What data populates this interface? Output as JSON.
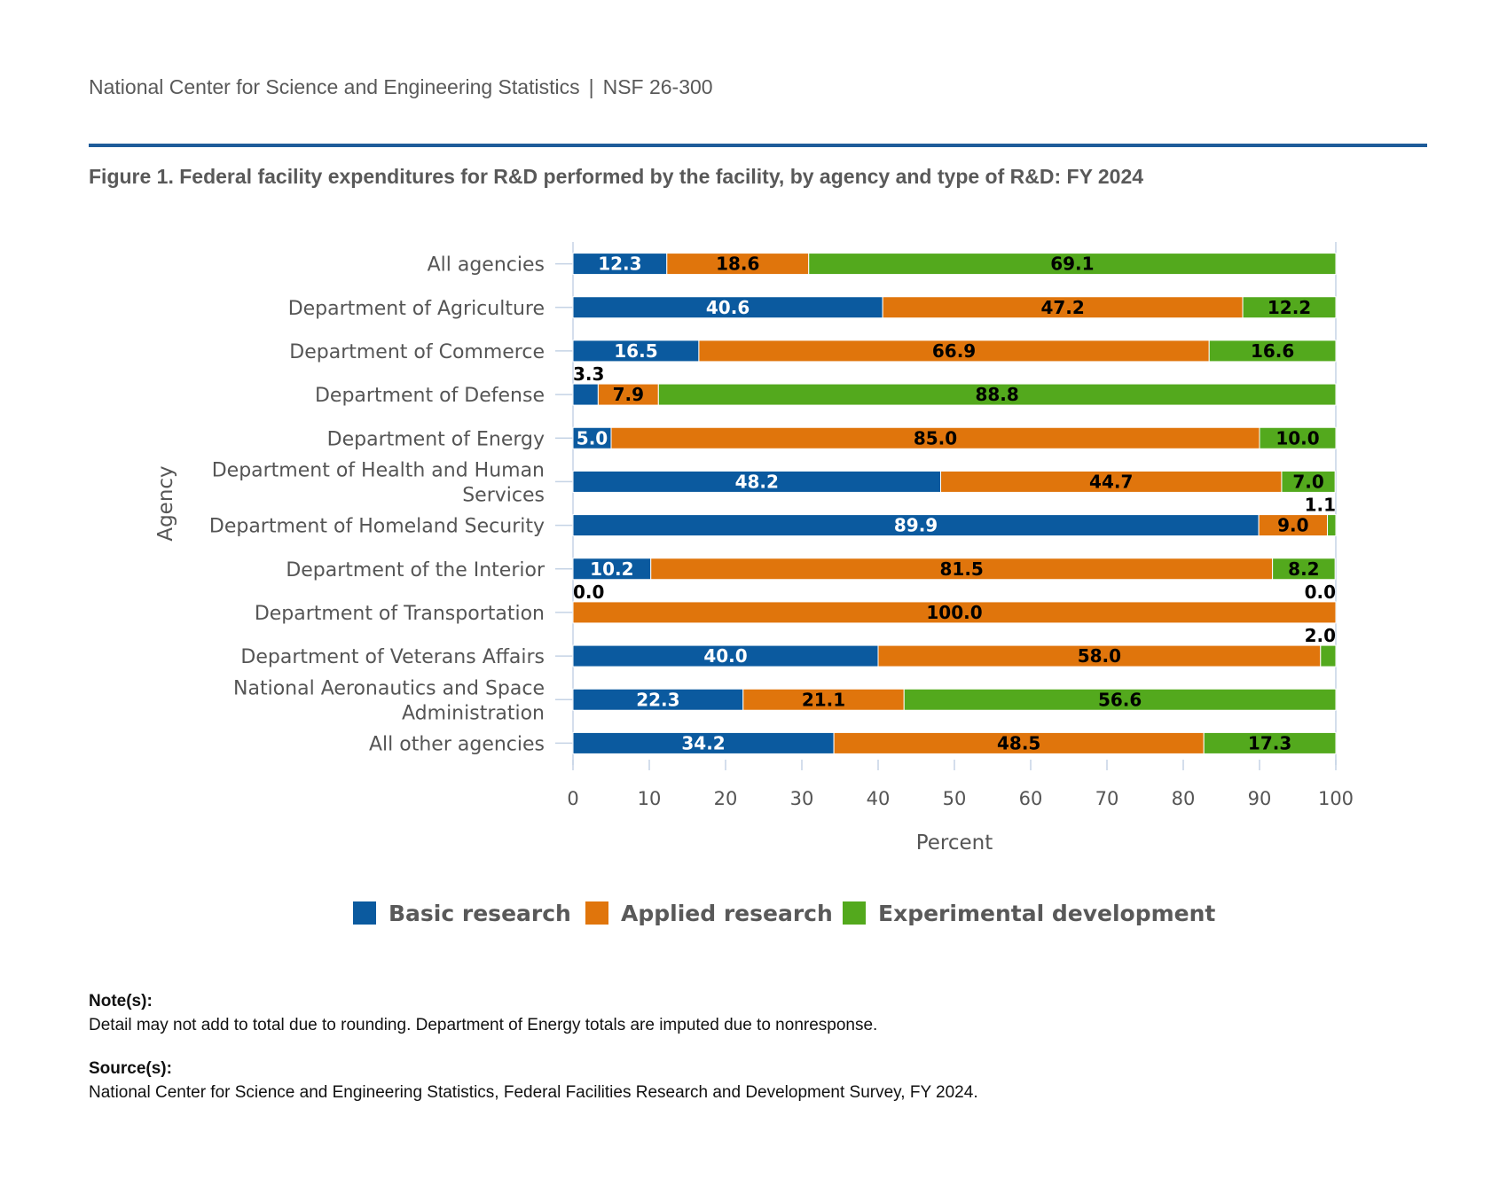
{
  "header": {
    "org": "National Center for Science and Engineering Statistics",
    "separator": "|",
    "pub_id": "NSF 26-300"
  },
  "figure_title": "Figure 1. Federal facility expenditures for R&D performed by the facility, by agency and type of R&D: FY 2024",
  "colors": {
    "basic": "#0b5a9f",
    "applied": "#e0750c",
    "experimental": "#53a91d",
    "rule": "#1e5c9a",
    "axis_text": "#555555",
    "grid": "#c5d3e5"
  },
  "chart_data": {
    "type": "bar",
    "orientation": "horizontal",
    "stacked": true,
    "categories": [
      [
        "All agencies"
      ],
      [
        "Department of Agriculture"
      ],
      [
        "Department of Commerce"
      ],
      [
        "Department of Defense"
      ],
      [
        "Department of Energy"
      ],
      [
        "Department of Health and Human",
        "Services"
      ],
      [
        "Department of Homeland Security"
      ],
      [
        "Department of the Interior"
      ],
      [
        "Department of Transportation"
      ],
      [
        "Department of Veterans Affairs"
      ],
      [
        "National Aeronautics and Space",
        "Administration"
      ],
      [
        "All other agencies"
      ]
    ],
    "series": [
      {
        "name": "Basic research",
        "color": "#0b5a9f",
        "label_color": "#ffffff",
        "values": [
          12.3,
          40.6,
          16.5,
          3.3,
          5.0,
          48.2,
          89.9,
          10.2,
          0.0,
          40.0,
          22.3,
          34.2
        ]
      },
      {
        "name": "Applied research",
        "color": "#e0750c",
        "label_color": "#000000",
        "values": [
          18.6,
          47.2,
          66.9,
          7.9,
          85.0,
          44.7,
          9.0,
          81.5,
          100.0,
          58.0,
          21.1,
          48.5
        ]
      },
      {
        "name": "Experimental development",
        "color": "#53a91d",
        "label_color": "#000000",
        "values": [
          69.1,
          12.2,
          16.6,
          88.8,
          10.0,
          7.0,
          1.1,
          8.2,
          0.0,
          2.0,
          56.6,
          17.3
        ]
      }
    ],
    "xlabel": "Percent",
    "ylabel": "Agency",
    "xlim": [
      0,
      100
    ],
    "xticks": [
      0,
      10,
      20,
      30,
      40,
      50,
      60,
      70,
      80,
      90,
      100
    ],
    "grid": false,
    "legend_position": "bottom"
  },
  "notes": {
    "note_heading": "Note(s):",
    "note_text": "Detail may not add to total due to rounding. Department of Energy totals are imputed due to nonresponse.",
    "source_heading": "Source(s):",
    "source_text": "National Center for Science and Engineering Statistics, Federal Facilities Research and Development Survey, FY 2024."
  }
}
